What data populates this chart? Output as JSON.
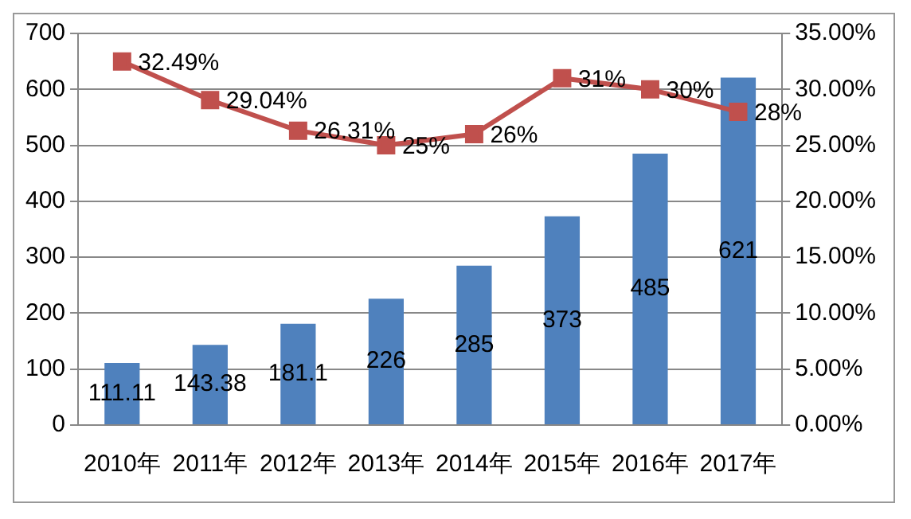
{
  "chart_data": {
    "type": "bar",
    "categories": [
      "2010年",
      "2011年",
      "2012年",
      "2013年",
      "2014年",
      "2015年",
      "2016年",
      "2017年"
    ],
    "series": [
      {
        "color": "#4f81bd",
        "values": [
          111.11,
          143.38,
          181.1,
          226,
          285,
          373,
          485,
          621
        ],
        "value_labels": [
          "111.11",
          "143.38",
          "181.1",
          "226",
          "285",
          "373",
          "485",
          "621"
        ]
      },
      {
        "type": "line",
        "axis": "y2",
        "color": "#c0504d",
        "values": [
          32.49,
          29.04,
          26.31,
          25,
          26,
          31,
          30,
          28
        ],
        "value_labels": [
          "32.49%",
          "29.04%",
          "26.31%",
          "25%",
          "26%",
          "31%",
          "30%",
          "28%"
        ]
      }
    ],
    "ylim": [
      0,
      700
    ],
    "yticks": [
      0,
      100,
      200,
      300,
      400,
      500,
      600,
      700
    ],
    "y2lim": [
      0,
      35
    ],
    "y2ticks": [
      {
        "value": 0,
        "label": "0.00%"
      },
      {
        "value": 5,
        "label": "5.00%"
      },
      {
        "value": 10,
        "label": "10.00%"
      },
      {
        "value": 15,
        "label": "15.00%"
      },
      {
        "value": 20,
        "label": "20.00%"
      },
      {
        "value": 25,
        "label": "25.00%"
      },
      {
        "value": 30,
        "label": "30.00%"
      },
      {
        "value": 35,
        "label": "35.00%"
      }
    ],
    "grid": "y",
    "legend": false,
    "marker": "square",
    "line_style": "solid"
  }
}
